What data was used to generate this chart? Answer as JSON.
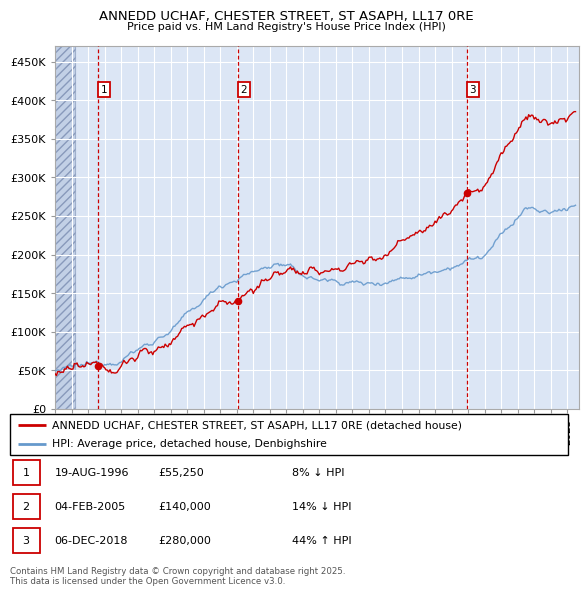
{
  "title": "ANNEDD UCHAF, CHESTER STREET, ST ASAPH, LL17 0RE",
  "subtitle": "Price paid vs. HM Land Registry's House Price Index (HPI)",
  "sale_dates_float": [
    1996.63,
    2005.09,
    2018.93
  ],
  "sale_prices": [
    55250,
    140000,
    280000
  ],
  "sale_labels": [
    "1",
    "2",
    "3"
  ],
  "legend_property": "ANNEDD UCHAF, CHESTER STREET, ST ASAPH, LL17 0RE (detached house)",
  "legend_hpi": "HPI: Average price, detached house, Denbighshire",
  "table_rows": [
    [
      "1",
      "19-AUG-1996",
      "£55,250",
      "8% ↓ HPI"
    ],
    [
      "2",
      "04-FEB-2005",
      "£140,000",
      "14% ↓ HPI"
    ],
    [
      "3",
      "06-DEC-2018",
      "£280,000",
      "44% ↑ HPI"
    ]
  ],
  "footer": "Contains HM Land Registry data © Crown copyright and database right 2025.\nThis data is licensed under the Open Government Licence v3.0.",
  "property_color": "#cc0000",
  "hpi_color": "#6699cc",
  "vline_color": "#cc0000",
  "bg_color": "#dce6f5",
  "plot_bg": "#dce6f5",
  "ylim": [
    0,
    470000
  ],
  "yticks": [
    0,
    50000,
    100000,
    150000,
    200000,
    250000,
    300000,
    350000,
    400000,
    450000
  ],
  "xlim_start": 1994,
  "xlim_end": 2025.7
}
